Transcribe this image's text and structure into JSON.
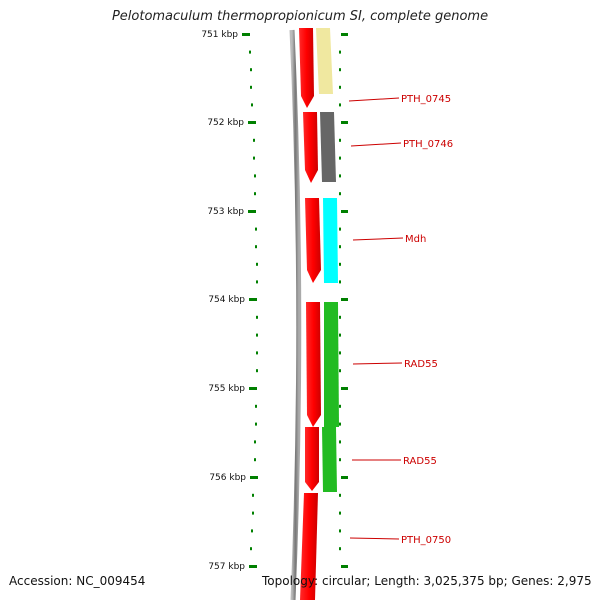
{
  "title": "Pelotomaculum thermopropionicum SI, complete genome",
  "footer": {
    "accession": "Accession: NC_009454",
    "topology": "Topology: circular; Length: 3,025,375 bp; Genes: 2,975"
  },
  "scale": {
    "major_ticks": [
      "751 kbp",
      "752 kbp",
      "753 kbp",
      "754 kbp",
      "755 kbp",
      "756 kbp",
      "757 kbp"
    ]
  },
  "genes": [
    {
      "label": "PTH_0745",
      "color": "#f0e8a0"
    },
    {
      "label": "PTH_0746",
      "color": "#666666"
    },
    {
      "label": "Mdh",
      "color": "#00ffff"
    },
    {
      "label": "RAD55",
      "color": "#22bb22"
    },
    {
      "label": "RAD55",
      "color": "#22bb22"
    },
    {
      "label": "PTH_0750",
      "color": "#ffffff"
    }
  ],
  "colors": {
    "forward_strand": "#ff0000",
    "backbone": "#888888",
    "tick": "#008000",
    "label": "#cc0000"
  }
}
